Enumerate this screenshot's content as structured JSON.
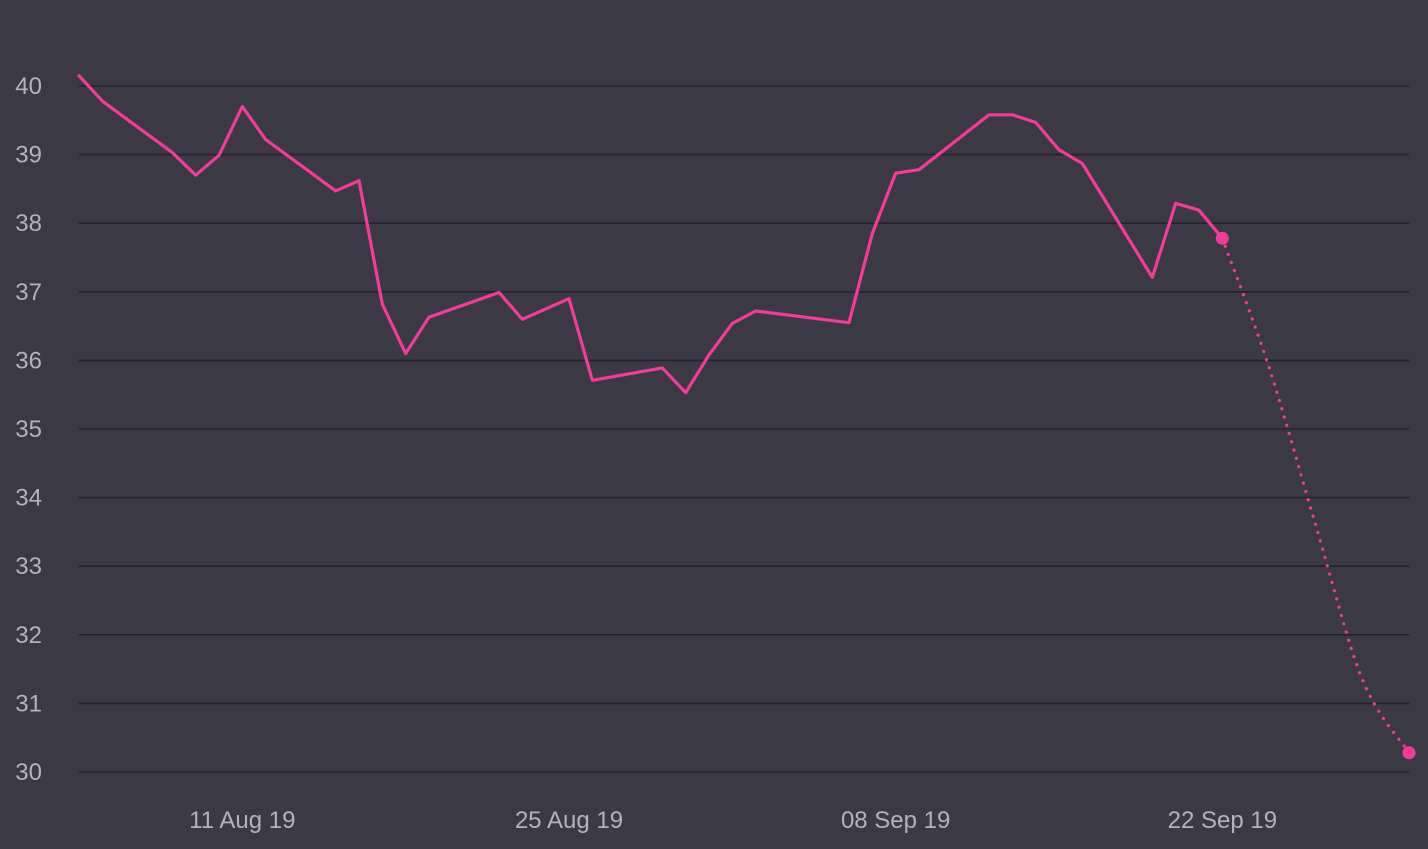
{
  "chart_data": {
    "type": "line",
    "title": "",
    "xlabel": "",
    "ylabel": "",
    "grid": true,
    "legend": "none",
    "line_color": "#f23c97",
    "y_ticks": [
      30,
      31,
      32,
      33,
      34,
      35,
      36,
      37,
      38,
      39,
      40
    ],
    "y_tick_labels": [
      "30",
      "31",
      "32",
      "33",
      "34",
      "35",
      "36",
      "37",
      "38",
      "39",
      "40"
    ],
    "ylim": [
      30,
      40.3
    ],
    "xlim": [
      "2019-08-04",
      "2019-09-30"
    ],
    "x_ticks": [
      "2019-08-11",
      "2019-08-25",
      "2019-09-08",
      "2019-09-22"
    ],
    "x_tick_labels": [
      "11 Aug 19",
      "25 Aug 19",
      "08 Sep 19",
      "22 Sep 19"
    ],
    "series": [
      {
        "style": "solid",
        "x": [
          "2019-08-04",
          "2019-08-05",
          "2019-08-08",
          "2019-08-09",
          "2019-08-10",
          "2019-08-11",
          "2019-08-12",
          "2019-08-15",
          "2019-08-16",
          "2019-08-17",
          "2019-08-18",
          "2019-08-19",
          "2019-08-22",
          "2019-08-23",
          "2019-08-25",
          "2019-08-26",
          "2019-08-29",
          "2019-08-30",
          "2019-08-31",
          "2019-09-01",
          "2019-09-02",
          "2019-09-06",
          "2019-09-07",
          "2019-09-08",
          "2019-09-09",
          "2019-09-12",
          "2019-09-13",
          "2019-09-14",
          "2019-09-15",
          "2019-09-16",
          "2019-09-19",
          "2019-09-20",
          "2019-09-21",
          "2019-09-22"
        ],
        "y": [
          40.15,
          39.78,
          39.03,
          38.7,
          38.99,
          39.7,
          39.22,
          38.47,
          38.62,
          36.82,
          36.1,
          36.63,
          36.99,
          36.6,
          36.9,
          35.71,
          35.89,
          35.53,
          36.08,
          36.54,
          36.72,
          36.55,
          37.85,
          38.73,
          38.78,
          39.58,
          39.58,
          39.47,
          39.07,
          38.87,
          37.21,
          38.29,
          38.19,
          37.78
        ]
      },
      {
        "style": "dotted",
        "x": [
          "2019-09-22",
          "2019-09-24",
          "2019-09-26",
          "2019-09-28",
          "2019-09-30"
        ],
        "y": [
          37.78,
          35.9,
          33.6,
          31.35,
          30.28
        ]
      }
    ]
  }
}
